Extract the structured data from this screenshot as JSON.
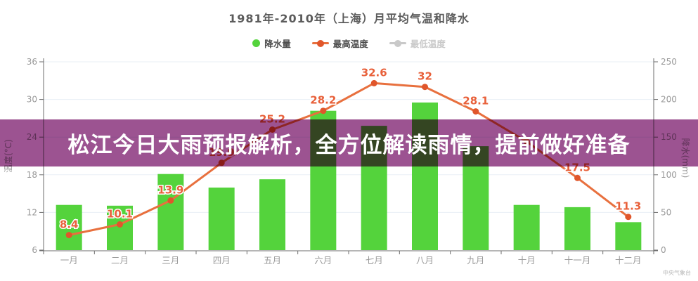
{
  "title": "1981年-2010年（上海）月平均气温和降水",
  "legend": {
    "precip": "降水量",
    "tmax": "最高温度",
    "tmin": "最低温度"
  },
  "banner": {
    "text": "松江今日大雨预报解析，全方位解读雨情，提前做好准备"
  },
  "watermark": "中央气象台",
  "colors": {
    "bar": "#54d33c",
    "line": "#e8703e",
    "point": "#e0562b",
    "value_label": "#e8603a",
    "banner": "#9c5391",
    "grid": "#e9eff6",
    "axis": "#6e6e6e",
    "tick_label": "#999999",
    "inactive": "#c9c9c9"
  },
  "axes": {
    "left": {
      "name": "温度(°C)",
      "ticks": [
        36,
        30,
        24,
        18,
        12,
        6
      ]
    },
    "right": {
      "name": "降水(mm)",
      "ticks": [
        250,
        200,
        150,
        100,
        50,
        0
      ]
    }
  },
  "chart_data": {
    "type": "bar",
    "title": "1981年-2010年（上海）月平均气温和降水",
    "categories": [
      "一月",
      "二月",
      "三月",
      "四月",
      "五月",
      "六月",
      "七月",
      "八月",
      "九月",
      "十月",
      "十一月",
      "十二月"
    ],
    "series": [
      {
        "name": "降水量",
        "type": "bar",
        "unit": "mm",
        "axis": "right",
        "values": [
          60,
          59,
          101,
          83,
          94,
          185,
          165,
          196,
          138,
          60,
          57,
          37
        ]
      },
      {
        "name": "最高温度",
        "type": "line",
        "unit": "°C",
        "axis": "left",
        "values": [
          8.4,
          10.1,
          13.9,
          19.9,
          25.2,
          28.2,
          32.6,
          32,
          28.1,
          23.3,
          17.5,
          11.3
        ],
        "labels": [
          "8.4",
          "10.1",
          "13.9",
          "19.9",
          "25.2",
          "28.2",
          "32.6",
          "32",
          "28.1",
          "",
          "17.5",
          "11.3"
        ]
      },
      {
        "name": "最低温度",
        "type": "line",
        "hidden": true,
        "values": []
      }
    ],
    "left_axis": {
      "label": "温度(°C)",
      "min": 6,
      "max": 36
    },
    "right_axis": {
      "label": "降水(mm)",
      "min": 0,
      "max": 250
    },
    "grid": true,
    "legend_position": "top"
  }
}
